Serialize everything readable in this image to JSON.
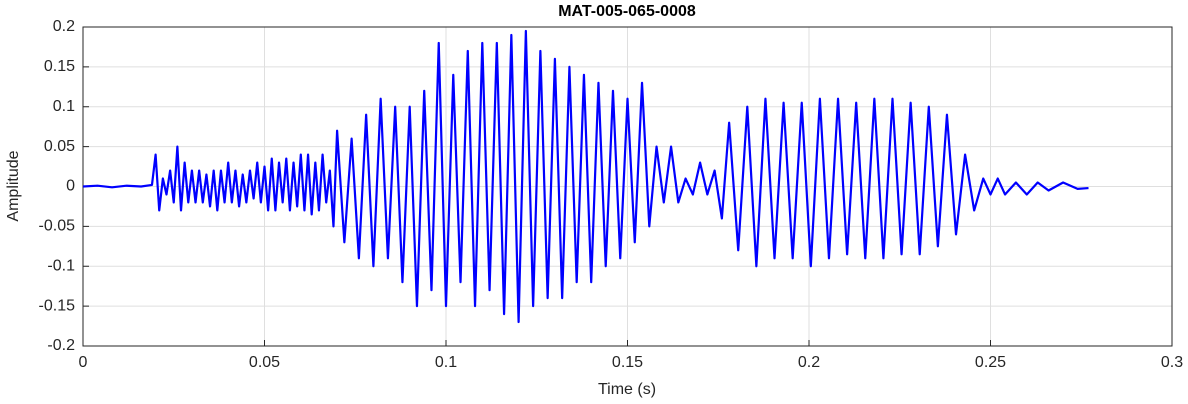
{
  "chart_data": {
    "type": "line",
    "title": "MAT-005-065-0008",
    "xlabel": "Time (s)",
    "ylabel": "Amplitude",
    "x": [
      0,
      0.004,
      0.008,
      0.012,
      0.016,
      0.019,
      0.02,
      0.021,
      0.022,
      0.023,
      0.024,
      0.025,
      0.026,
      0.027,
      0.028,
      0.029,
      0.03,
      0.031,
      0.032,
      0.033,
      0.034,
      0.035,
      0.036,
      0.037,
      0.038,
      0.039,
      0.04,
      0.041,
      0.042,
      0.043,
      0.044,
      0.045,
      0.046,
      0.047,
      0.048,
      0.049,
      0.05,
      0.051,
      0.052,
      0.053,
      0.054,
      0.055,
      0.056,
      0.057,
      0.058,
      0.059,
      0.06,
      0.061,
      0.062,
      0.063,
      0.064,
      0.065,
      0.066,
      0.067,
      0.068,
      0.069,
      0.07,
      0.072,
      0.074,
      0.076,
      0.078,
      0.08,
      0.082,
      0.084,
      0.086,
      0.088,
      0.09,
      0.092,
      0.094,
      0.096,
      0.098,
      0.1,
      0.102,
      0.104,
      0.106,
      0.108,
      0.11,
      0.112,
      0.114,
      0.116,
      0.118,
      0.12,
      0.122,
      0.124,
      0.126,
      0.128,
      0.13,
      0.132,
      0.134,
      0.136,
      0.138,
      0.14,
      0.142,
      0.144,
      0.146,
      0.148,
      0.15,
      0.152,
      0.154,
      0.156,
      0.158,
      0.16,
      0.162,
      0.164,
      0.166,
      0.168,
      0.17,
      0.172,
      0.174,
      0.176,
      0.178,
      0.1805,
      0.183,
      0.1855,
      0.188,
      0.1905,
      0.193,
      0.1955,
      0.198,
      0.2005,
      0.203,
      0.2055,
      0.208,
      0.2105,
      0.213,
      0.2155,
      0.218,
      0.2205,
      0.223,
      0.2255,
      0.228,
      0.2305,
      0.233,
      0.2355,
      0.238,
      0.2405,
      0.243,
      0.2455,
      0.248,
      0.25,
      0.252,
      0.254,
      0.257,
      0.26,
      0.263,
      0.266,
      0.27,
      0.274,
      0.277
    ],
    "series": [
      {
        "name": "Amplitude",
        "color": "#0000ff",
        "values": [
          0,
          0.001,
          -0.001,
          0.001,
          0,
          0.002,
          0.04,
          -0.03,
          0.01,
          -0.01,
          0.02,
          -0.02,
          0.05,
          -0.03,
          0.03,
          -0.02,
          0.02,
          -0.02,
          0.02,
          -0.02,
          0.015,
          -0.025,
          0.02,
          -0.03,
          0.02,
          -0.02,
          0.03,
          -0.02,
          0.02,
          -0.025,
          0.015,
          -0.02,
          0.02,
          -0.015,
          0.03,
          -0.02,
          0.025,
          -0.03,
          0.035,
          -0.03,
          0.03,
          -0.02,
          0.035,
          -0.03,
          0.03,
          -0.025,
          0.04,
          -0.03,
          0.04,
          -0.035,
          0.03,
          -0.03,
          0.04,
          -0.02,
          0.02,
          -0.05,
          0.07,
          -0.07,
          0.06,
          -0.09,
          0.09,
          -0.1,
          0.11,
          -0.09,
          0.1,
          -0.12,
          0.1,
          -0.15,
          0.12,
          -0.13,
          0.18,
          -0.15,
          0.14,
          -0.12,
          0.17,
          -0.15,
          0.18,
          -0.13,
          0.18,
          -0.16,
          0.19,
          -0.17,
          0.195,
          -0.15,
          0.17,
          -0.14,
          0.16,
          -0.14,
          0.15,
          -0.12,
          0.14,
          -0.12,
          0.13,
          -0.1,
          0.12,
          -0.09,
          0.11,
          -0.07,
          0.13,
          -0.05,
          0.05,
          -0.02,
          0.05,
          -0.02,
          0.01,
          -0.01,
          0.03,
          -0.01,
          0.02,
          -0.04,
          0.08,
          -0.08,
          0.1,
          -0.1,
          0.11,
          -0.09,
          0.105,
          -0.09,
          0.105,
          -0.1,
          0.11,
          -0.09,
          0.11,
          -0.085,
          0.105,
          -0.09,
          0.11,
          -0.09,
          0.11,
          -0.085,
          0.105,
          -0.085,
          0.1,
          -0.075,
          0.09,
          -0.06,
          0.04,
          -0.03,
          0.01,
          -0.01,
          0.01,
          -0.01,
          0.005,
          -0.01,
          0.005,
          -0.005,
          0.005,
          -0.003,
          -0.002
        ]
      }
    ],
    "xlim": [
      0,
      0.3
    ],
    "ylim": [
      -0.2,
      0.2
    ],
    "xticks": [
      0,
      0.05,
      0.1,
      0.15,
      0.2,
      0.25,
      0.3
    ],
    "yticks": [
      -0.2,
      -0.15,
      -0.1,
      -0.05,
      0,
      0.05,
      0.1,
      0.15,
      0.2
    ],
    "grid": true
  }
}
